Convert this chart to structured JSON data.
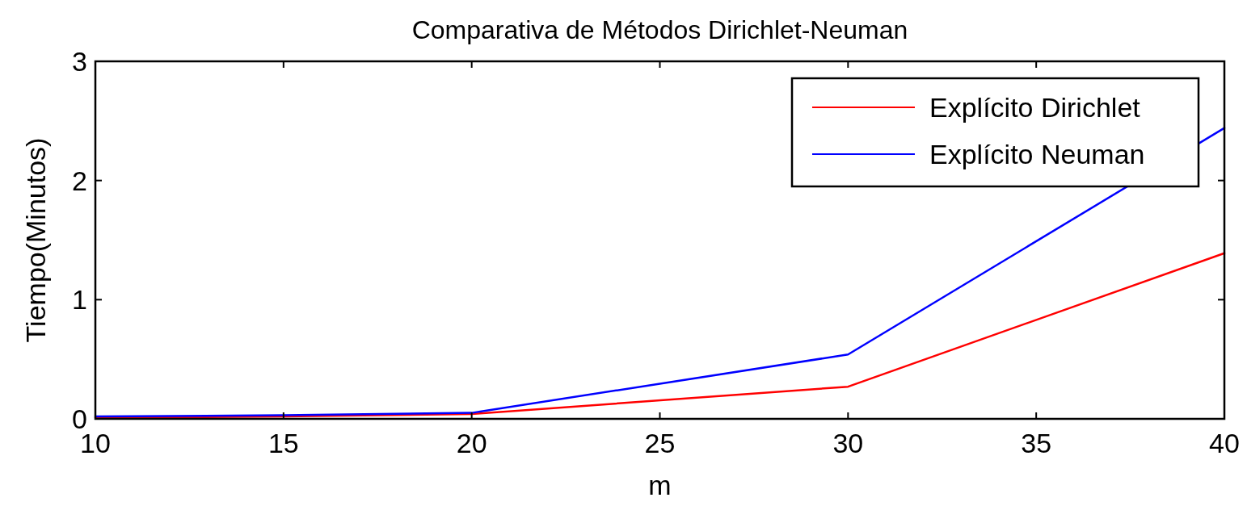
{
  "chart_data": {
    "type": "line",
    "title": "Comparativa de Métodos Dirichlet-Neuman",
    "xlabel": "m",
    "ylabel": "Tiempo(Minutos)",
    "x": [
      10,
      15,
      20,
      30,
      40
    ],
    "series": [
      {
        "name": "Explícito Dirichlet",
        "color": "#ff0000",
        "values": [
          0.01,
          0.02,
          0.04,
          0.27,
          1.39
        ]
      },
      {
        "name": "Explícito Neuman",
        "color": "#0000ff",
        "values": [
          0.02,
          0.03,
          0.05,
          0.54,
          2.44
        ]
      }
    ],
    "xlim": [
      10,
      40
    ],
    "xticks": [
      10,
      15,
      20,
      25,
      30,
      35,
      40
    ],
    "ylim": [
      0,
      3
    ],
    "yticks": [
      0,
      1,
      2,
      3
    ],
    "grid": false,
    "legend": "top right",
    "marker": "none",
    "line_style": "solid"
  }
}
